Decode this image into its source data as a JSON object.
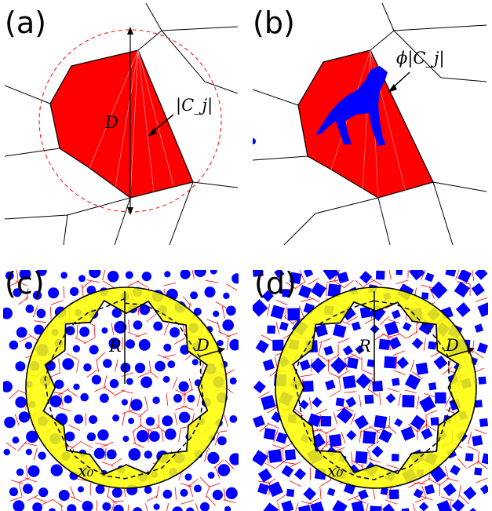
{
  "panels": [
    {
      "id": "a",
      "label": "(a)",
      "annotations": {
        "diameter": "D",
        "cell_size": "|C_j|"
      }
    },
    {
      "id": "b",
      "label": "(b)",
      "annotations": {
        "fraction": "ϕ|C_j|"
      }
    },
    {
      "id": "c",
      "label": "(c)",
      "annotations": {
        "radius": "R",
        "width": "D",
        "start_point": "x₀"
      },
      "particle_shape": "circle"
    },
    {
      "id": "d",
      "label": "(d)",
      "annotations": {
        "radius": "R",
        "width": "D",
        "start_point": "x₀"
      },
      "particle_shape": "square"
    }
  ],
  "colors": {
    "cell_fill": "#ff0000",
    "particle_fill": "#0000ff",
    "annulus_fill": "#ffff00",
    "cell_edges_dense": "#ff0000",
    "circle_dashed": "#ff0000",
    "edges": "#000000"
  }
}
